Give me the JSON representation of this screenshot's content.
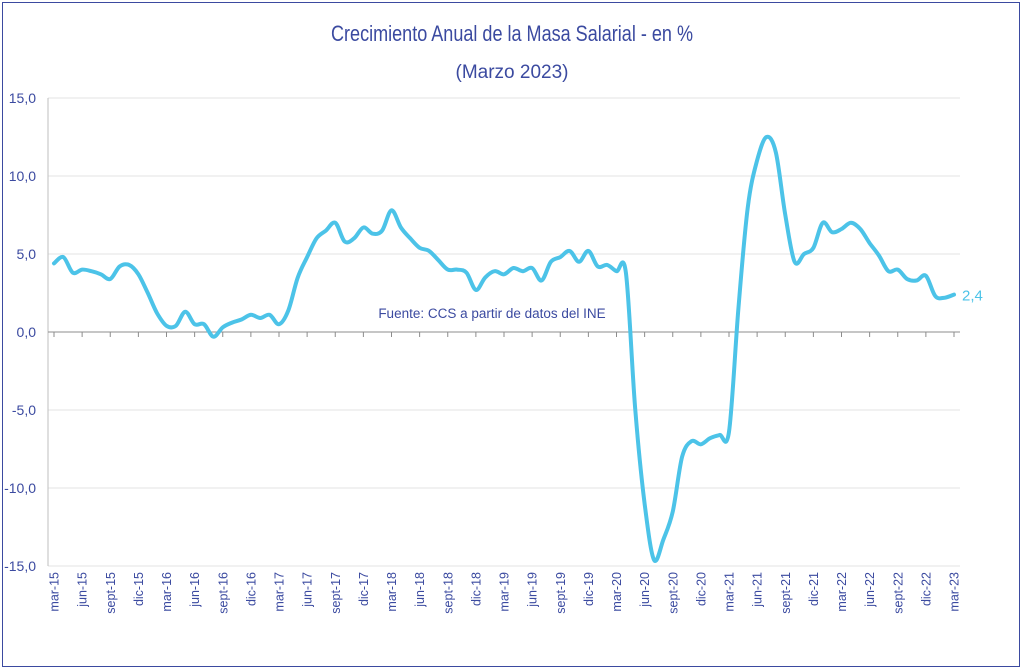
{
  "chart_data": {
    "type": "line",
    "title": "Crecimiento Anual de la Masa Salarial - en %",
    "subtitle": "(Marzo 2023)",
    "annotation": "Fuente: CCS a partir de datos del INE",
    "xlabel": "",
    "ylabel": "",
    "ylim": [
      -15,
      15
    ],
    "yticks": [
      15,
      10,
      5,
      0,
      -5,
      -10,
      -15
    ],
    "ytick_labels": [
      "15,0",
      "10,0",
      "5,0",
      "0,0",
      "-5,0",
      "-10,0",
      "-15,0"
    ],
    "grid": true,
    "legend": "none",
    "series_color": "#4cc3e8",
    "text_color": "#3b4aa0",
    "end_label": "2,4",
    "x_tick_labels": [
      "mar-15",
      "jun-15",
      "sept-15",
      "dic-15",
      "mar-16",
      "jun-16",
      "sept-16",
      "dic-16",
      "mar-17",
      "jun-17",
      "sept-17",
      "dic-17",
      "mar-18",
      "jun-18",
      "sept-18",
      "dic-18",
      "mar-19",
      "jun-19",
      "sept-19",
      "dic-19",
      "mar-20",
      "jun-20",
      "sept-20",
      "dic-20",
      "mar-21",
      "jun-21",
      "sept-21",
      "dic-21",
      "mar-22",
      "jun-22",
      "sept-22",
      "dic-22",
      "mar-23"
    ],
    "values": [
      4.4,
      4.8,
      3.8,
      4.0,
      3.9,
      3.7,
      3.4,
      4.2,
      4.3,
      3.7,
      2.5,
      1.2,
      0.4,
      0.4,
      1.3,
      0.5,
      0.5,
      -0.3,
      0.3,
      0.6,
      0.8,
      1.1,
      0.9,
      1.1,
      0.5,
      1.4,
      3.5,
      4.8,
      6.0,
      6.5,
      7.0,
      5.8,
      6.0,
      6.7,
      6.3,
      6.5,
      7.8,
      6.7,
      6.0,
      5.4,
      5.2,
      4.6,
      4.0,
      4.0,
      3.8,
      2.7,
      3.5,
      3.9,
      3.7,
      4.1,
      3.9,
      4.1,
      3.3,
      4.5,
      4.8,
      5.2,
      4.5,
      5.2,
      4.2,
      4.3,
      3.9,
      3.8,
      -5.0,
      -11.0,
      -14.6,
      -13.3,
      -11.5,
      -8.0,
      -7.0,
      -7.2,
      -6.8,
      -6.6,
      -6.4,
      1.5,
      8.0,
      11.0,
      12.5,
      11.5,
      7.5,
      4.5,
      5.0,
      5.4,
      7.0,
      6.4,
      6.6,
      7.0,
      6.6,
      5.7,
      4.9,
      3.9,
      4.0,
      3.4,
      3.3,
      3.6,
      2.3,
      2.2,
      2.4
    ]
  }
}
